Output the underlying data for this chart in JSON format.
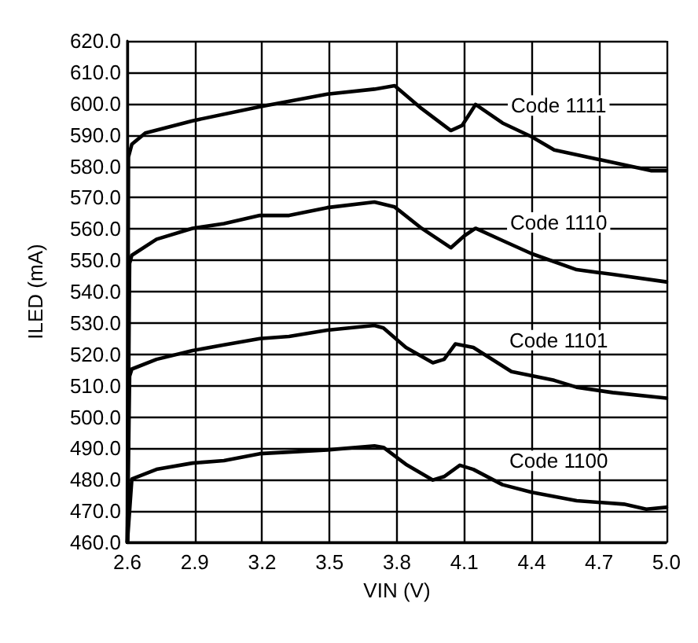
{
  "chart_data": {
    "type": "line",
    "xlabel": "VIN (V)",
    "ylabel": "ILED (mA)",
    "xlim": [
      2.6,
      5.0
    ],
    "xticks": [
      2.6,
      2.9,
      3.2,
      3.5,
      3.8,
      4.1,
      4.4,
      4.7,
      {
        "value": 5,
        "label": "5.0"
      }
    ],
    "ylim": [
      460,
      620
    ],
    "yticks": [
      {
        "value": 460,
        "label": "460.0"
      },
      {
        "value": 470,
        "label": "470.0"
      },
      {
        "value": 480,
        "label": "480.0"
      },
      {
        "value": 490,
        "label": "490.0"
      },
      {
        "value": 500,
        "label": "500.0"
      },
      {
        "value": 510,
        "label": "510.0"
      },
      {
        "value": 520,
        "label": "520.0"
      },
      {
        "value": 530,
        "label": "530.0"
      },
      {
        "value": 540,
        "label": "540.0"
      },
      {
        "value": 550,
        "label": "550.0"
      },
      {
        "value": 560,
        "label": "560.0"
      },
      {
        "value": 570,
        "label": "570.0"
      },
      {
        "value": 580,
        "label": "580.0"
      },
      {
        "value": 590,
        "label": "590.0"
      },
      {
        "value": 600,
        "label": "600.0"
      },
      {
        "value": 610,
        "label": "610.0"
      },
      {
        "value": 620,
        "label": "620.0"
      }
    ],
    "grid": true,
    "legend": false,
    "marker": "none",
    "line_style": "solid",
    "series": [
      {
        "name": "Code 1111",
        "color": "#000000",
        "x": [
          2.6,
          2.605,
          2.62,
          2.68,
          2.89,
          3.19,
          3.49,
          3.7,
          3.79,
          3.91,
          4.04,
          4.09,
          4.15,
          4.27,
          4.4,
          4.5,
          4.71,
          4.93,
          5.0
        ],
        "values": [
          460,
          583,
          587,
          590.6,
          594.5,
          599,
          603,
          604.6,
          605.7,
          598.4,
          591.4,
          593,
          599.7,
          593.8,
          589.4,
          585.2,
          582,
          578.6,
          578.6
        ]
      },
      {
        "name": "Code 1110",
        "color": "#000000",
        "x": [
          2.6,
          2.61,
          2.62,
          2.73,
          2.89,
          3.03,
          3.19,
          3.32,
          3.49,
          3.7,
          3.79,
          3.91,
          4.04,
          4.1,
          4.15,
          4.27,
          4.4,
          4.6,
          4.76,
          5.0
        ],
        "values": [
          460,
          549,
          551.6,
          556.7,
          560.2,
          561.7,
          564.3,
          564.3,
          566.8,
          568.6,
          567,
          560.2,
          554,
          557.8,
          560.2,
          556.3,
          552.1,
          547,
          545.5,
          543.1
        ]
      },
      {
        "name": "Code 1101",
        "color": "#000000",
        "x": [
          2.6,
          2.61,
          2.62,
          2.73,
          2.89,
          3.03,
          3.19,
          3.32,
          3.49,
          3.7,
          3.74,
          3.84,
          3.96,
          4.01,
          4.06,
          4.14,
          4.31,
          4.5,
          4.6,
          4.76,
          5.0
        ],
        "values": [
          460,
          513,
          515.3,
          518.4,
          521.2,
          523,
          525,
          525.7,
          527.7,
          529.2,
          528.4,
          522.2,
          517.3,
          518.4,
          523.3,
          522.2,
          514.5,
          511.7,
          509.5,
          507.8,
          506
        ]
      },
      {
        "name": "Code 1100",
        "color": "#000000",
        "x": [
          2.6,
          2.62,
          2.73,
          2.89,
          3.03,
          3.19,
          3.49,
          3.7,
          3.74,
          3.84,
          3.96,
          4.01,
          4.08,
          4.14,
          4.27,
          4.4,
          4.6,
          4.81,
          4.91,
          5.0
        ],
        "values": [
          460,
          480.2,
          483.3,
          485.3,
          486.1,
          488.3,
          489.5,
          490.8,
          490.3,
          484.9,
          479.9,
          481,
          484.6,
          483.3,
          478.4,
          476,
          473.3,
          472.2,
          470.6,
          471.2
        ]
      }
    ]
  }
}
